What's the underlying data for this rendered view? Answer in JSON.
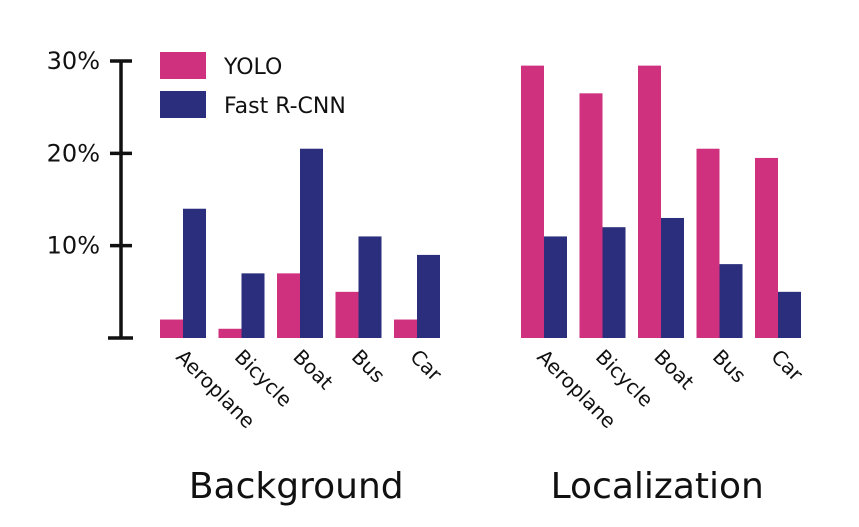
{
  "chart_data": {
    "type": "bar",
    "ylim": [
      0,
      30
    ],
    "yticks": [
      "10%",
      "20%",
      "30%"
    ],
    "ytick_values": [
      10,
      20,
      30
    ],
    "legend_position": "top-left",
    "series": [
      {
        "name": "YOLO",
        "color": "#d0317f"
      },
      {
        "name": "Fast R-CNN",
        "color": "#2b2d7d"
      }
    ],
    "groups": [
      {
        "title": "Background",
        "categories": [
          "Aeroplane",
          "Bicycle",
          "Boat",
          "Bus",
          "Car"
        ],
        "values": [
          [
            2,
            1,
            7,
            5,
            2
          ],
          [
            14,
            7,
            20.5,
            11,
            9
          ]
        ]
      },
      {
        "title": "Localization",
        "categories": [
          "Aeroplane",
          "Bicycle",
          "Boat",
          "Bus",
          "Car"
        ],
        "values": [
          [
            29.5,
            26.5,
            29.5,
            20.5,
            19.5
          ],
          [
            11,
            12,
            13,
            8,
            5
          ]
        ]
      }
    ]
  }
}
